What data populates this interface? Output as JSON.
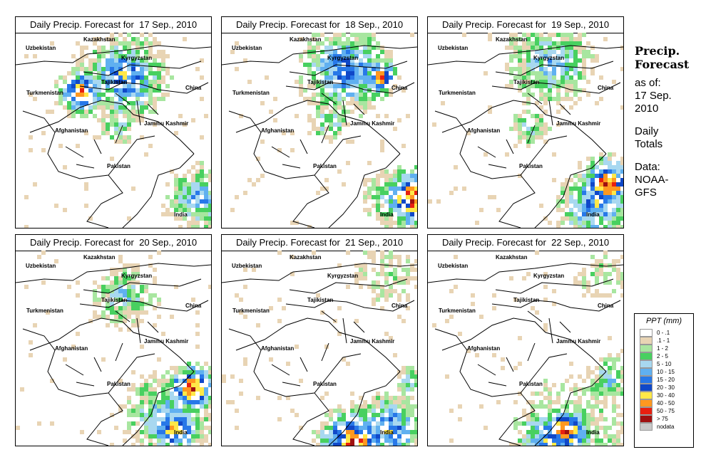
{
  "panels": [
    {
      "title": "Daily Precip. Forecast for  17 Sep., 2010",
      "date_index": 0
    },
    {
      "title": "Daily Precip. Forecast for  18 Sep., 2010",
      "date_index": 1
    },
    {
      "title": "Daily Precip. Forecast for  19 Sep., 2010",
      "date_index": 2
    },
    {
      "title": "Daily Precip. Forecast for  20 Sep., 2010",
      "date_index": 3
    },
    {
      "title": "Daily Precip. Forecast for  21 Sep., 2010",
      "date_index": 4
    },
    {
      "title": "Daily Precip. Forecast for  22 Sep., 2010",
      "date_index": 5
    }
  ],
  "map_labels": {
    "kazakhstan": "Kazakhstan",
    "uzbekistan": "Uzbekistan",
    "kyrgyzstan": "Kyrgyzstan",
    "tajikistan": "Tajikistan",
    "turkmenistan": "Turkmenistan",
    "china": "China",
    "afghanistan": "Afghanistan",
    "jammu_kashmir": "Jammu Kashmir",
    "pakistan": "Pakistan",
    "india": "India"
  },
  "sidebar": {
    "title_line1": "Precip.",
    "title_line2": "Forecast",
    "asof_line1": "as of:",
    "asof_line2": "17 Sep.",
    "asof_line3": "2010",
    "daily_line1": "Daily",
    "daily_line2": "Totals",
    "data_line1": "Data:",
    "data_line2": "NOAA-",
    "data_line3": "GFS"
  },
  "legend": {
    "title": "PPT (mm)",
    "items": [
      {
        "label": "0 - .1",
        "color": "#ffffff"
      },
      {
        "label": ".1 - 1",
        "color": "#e8d4b4"
      },
      {
        "label": "1 - 2",
        "color": "#a8e6a0"
      },
      {
        "label": "2 - 5",
        "color": "#48d060"
      },
      {
        "label": "5 - 10",
        "color": "#a8d8f0"
      },
      {
        "label": "10 - 15",
        "color": "#60b0f0"
      },
      {
        "label": "15 - 20",
        "color": "#2878e8"
      },
      {
        "label": "20 - 30",
        "color": "#1048c8"
      },
      {
        "label": "30 - 40",
        "color": "#ffe848"
      },
      {
        "label": "40 - 50",
        "color": "#ff9820"
      },
      {
        "label": "50 - 75",
        "color": "#e82010"
      },
      {
        "label": "> 75",
        "color": "#a01010"
      },
      {
        "label": "nodata",
        "color": "#c8c8c8"
      }
    ]
  }
}
